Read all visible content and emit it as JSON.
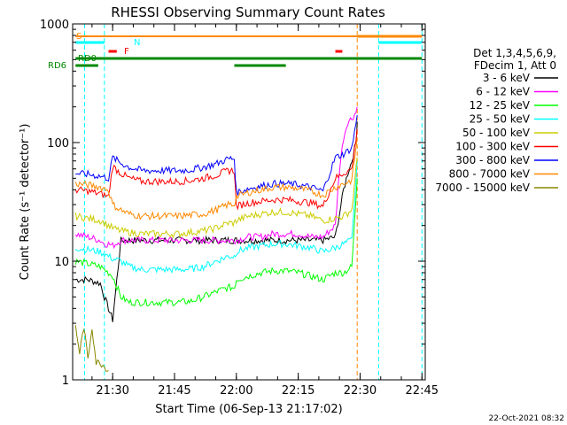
{
  "chart_data": {
    "type": "line",
    "title": "RHESSI Observing Summary Count Rates",
    "xlabel": "Start Time (06-Sep-13 21:17:02)",
    "ylabel": "Count Rate (s⁻¹ detector⁻¹)",
    "yscale": "log",
    "ylim": [
      1,
      1000
    ],
    "xlim_minutes": [
      21.3,
      92.5
    ],
    "x_ticks": [
      {
        "label": "21:30",
        "minute": 31
      },
      {
        "label": "21:45",
        "minute": 46
      },
      {
        "label": "22:00",
        "minute": 61
      },
      {
        "label": "22:15",
        "minute": 76
      },
      {
        "label": "22:30",
        "minute": 91
      },
      {
        "label": "22:45",
        "minute": 106
      }
    ],
    "y_ticks": [
      {
        "label": "1",
        "value": 1
      },
      {
        "label": "10",
        "value": 10
      },
      {
        "label": "100",
        "value": 100
      },
      {
        "label": "1000",
        "value": 1000
      }
    ],
    "legend_header": [
      "Det 1,3,4,5,6,9,",
      "FDecim 1, Att 0"
    ],
    "legend_position": "right",
    "series": [
      {
        "name": "3 - 6 keV",
        "color": "#000000",
        "x": [
          22,
          25,
          28,
          29,
          30,
          31,
          33,
          35,
          38,
          41,
          44,
          47,
          50,
          53,
          56,
          59,
          60.5,
          61,
          64,
          67,
          70,
          73,
          76,
          79,
          82,
          85,
          86,
          87,
          88,
          89,
          90,
          90.3
        ],
        "values": [
          7,
          7,
          6.5,
          5,
          4,
          3.2,
          15,
          15,
          15,
          15,
          15,
          15,
          15,
          15,
          15,
          15,
          15,
          15,
          15,
          15,
          15,
          15,
          15,
          15,
          15,
          16,
          25,
          40,
          55,
          70,
          100,
          150
        ]
      },
      {
        "name": "6 - 12 keV",
        "color": "#ff00ff",
        "x": [
          22,
          25,
          28,
          29,
          30,
          31,
          33,
          35,
          38,
          41,
          44,
          47,
          50,
          53,
          56,
          59,
          60.5,
          61,
          64,
          67,
          70,
          73,
          76,
          79,
          82,
          85,
          86,
          87,
          88,
          89,
          90,
          90.3
        ],
        "values": [
          17,
          16,
          15,
          14,
          14,
          13.5,
          15,
          15,
          15,
          15,
          15,
          15,
          15,
          15,
          15,
          15,
          15,
          15,
          16,
          16,
          17,
          17,
          17,
          16,
          16,
          20,
          60,
          110,
          150,
          160,
          180,
          200
        ]
      },
      {
        "name": "12 - 25 keV",
        "color": "#00ff00",
        "x": [
          22,
          25,
          28,
          29,
          30,
          31,
          33,
          35,
          38,
          41,
          44,
          47,
          50,
          53,
          56,
          59,
          60.5,
          61,
          64,
          67,
          70,
          73,
          76,
          79,
          82,
          85,
          87,
          89,
          90.3
        ],
        "values": [
          10,
          9.5,
          9,
          8.5,
          8,
          7.5,
          5,
          4.5,
          4.5,
          4.5,
          4.5,
          4.5,
          4.6,
          5,
          5.5,
          6,
          6,
          7,
          7.5,
          8,
          8.3,
          8.3,
          8,
          7.5,
          7,
          8,
          8,
          9,
          50
        ]
      },
      {
        "name": "25 - 50 keV",
        "color": "#00ffff",
        "x": [
          22,
          25,
          28,
          29,
          30,
          31,
          33,
          35,
          38,
          41,
          44,
          47,
          50,
          53,
          56,
          59,
          60.5,
          61,
          64,
          67,
          70,
          73,
          76,
          79,
          82,
          85,
          87,
          89,
          90.3
        ],
        "values": [
          13,
          12.5,
          12,
          11.5,
          11,
          10.5,
          10,
          9,
          8.5,
          8.5,
          8.5,
          8.5,
          8.6,
          9,
          10,
          11,
          11,
          12,
          13,
          13.5,
          14,
          14,
          13.5,
          13,
          12,
          13,
          14,
          15,
          70
        ]
      },
      {
        "name": "50 - 100 keV",
        "color": "#cccc00",
        "x": [
          22,
          25,
          28,
          29,
          30,
          31,
          33,
          35,
          38,
          41,
          44,
          47,
          50,
          53,
          56,
          59,
          60.5,
          61,
          64,
          67,
          70,
          73,
          76,
          79,
          82,
          85,
          87,
          89,
          90.3
        ],
        "values": [
          24,
          23,
          22,
          21,
          20,
          19,
          18,
          17.5,
          17,
          17,
          17,
          17,
          17.5,
          18,
          19,
          21,
          21,
          22,
          24,
          25,
          26,
          26,
          25,
          24,
          22,
          23,
          24,
          27,
          75
        ]
      },
      {
        "name": "100 - 300 keV",
        "color": "#ff0000",
        "x": [
          22,
          25,
          28,
          29,
          30,
          31,
          33,
          35,
          38,
          41,
          44,
          47,
          50,
          53,
          56,
          59,
          60.5,
          61,
          64,
          67,
          70,
          73,
          76,
          79,
          82,
          85,
          87,
          89,
          90.3
        ],
        "values": [
          40,
          39,
          37,
          36,
          35,
          63,
          55,
          50,
          47,
          47,
          47,
          47,
          48,
          50,
          53,
          58,
          58,
          29,
          31,
          32,
          33,
          33,
          32,
          31,
          29,
          50,
          55,
          60,
          130
        ]
      },
      {
        "name": "300 - 800 keV",
        "color": "#0000ff",
        "x": [
          22,
          25,
          28,
          29,
          30,
          31,
          33,
          35,
          38,
          41,
          44,
          47,
          50,
          53,
          56,
          59,
          60.5,
          61,
          64,
          67,
          70,
          73,
          76,
          79,
          82,
          85,
          87,
          89,
          90.3
        ],
        "values": [
          55,
          54,
          52,
          51,
          50,
          75,
          67,
          62,
          58,
          58,
          58,
          58,
          59,
          62,
          66,
          73,
          73,
          38,
          41,
          43,
          45,
          45,
          44,
          42,
          39,
          75,
          80,
          90,
          170
        ]
      },
      {
        "name": "800 - 7000 keV",
        "color": "#ff8800",
        "x": [
          22,
          25,
          28,
          29,
          30,
          31,
          33,
          35,
          38,
          41,
          44,
          47,
          50,
          53,
          56,
          59,
          60.5,
          61,
          64,
          67,
          70,
          73,
          76,
          79,
          82,
          85,
          87,
          89,
          90.3
        ],
        "values": [
          45,
          44,
          42,
          41,
          40,
          30,
          27,
          25,
          24,
          24,
          24,
          24,
          24.5,
          25,
          27,
          30,
          30,
          35,
          38,
          40,
          42,
          42,
          41,
          39,
          36,
          42,
          45,
          48,
          110
        ]
      },
      {
        "name": "7000 - 15000 keV",
        "color": "#888800",
        "x": [
          22,
          23,
          24,
          25,
          26,
          27,
          28,
          29,
          30
        ],
        "values": [
          2.8,
          1.7,
          2.8,
          1.5,
          2.8,
          1.4,
          1.4,
          1.3,
          1.2
        ]
      }
    ],
    "state_bars": [
      {
        "label": "S",
        "color": "#ff8800"
      },
      {
        "label": "N",
        "color": "#00ffff"
      },
      {
        "label": "F",
        "color": "#ff0000"
      },
      {
        "label": "RD0",
        "color": "#008800"
      },
      {
        "label": "RD6",
        "color": "#008800"
      }
    ],
    "timestamp": "22-Oct-2021 08:32"
  }
}
